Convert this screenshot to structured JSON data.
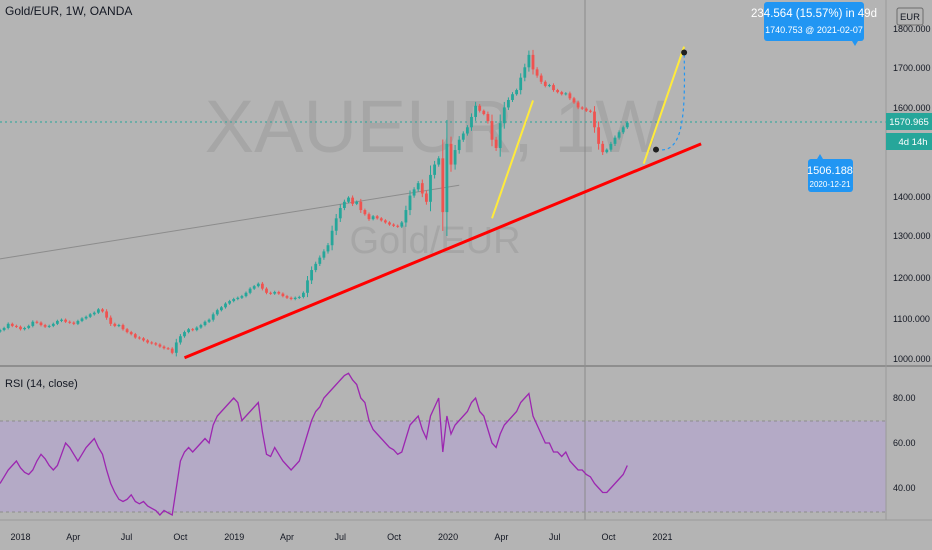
{
  "header": {
    "symbol": "Gold/EUR, 1W, OANDA",
    "currency": "EUR"
  },
  "watermark": {
    "ticker": "XAUEUR, 1W",
    "name": "Gold/EUR"
  },
  "price_axis": {
    "ticks": [
      "1800.000",
      "1700.000",
      "1600.000",
      "1400.000",
      "1300.000",
      "1200.000",
      "1100.000",
      "1000.000"
    ],
    "current_price": "1570.965",
    "countdown": "4d 14h"
  },
  "time_axis": {
    "labels": [
      "2018",
      "Apr",
      "Jul",
      "Oct",
      "2019",
      "Apr",
      "Jul",
      "Oct",
      "2020",
      "Apr",
      "Jul",
      "Oct",
      "2021"
    ]
  },
  "rsi": {
    "title": "RSI (14, close)",
    "ticks": [
      "80.00",
      "60.00",
      "40.00"
    ],
    "current_value": "50.27"
  },
  "measure": {
    "headline": "234.564 (15.57%) in 49d",
    "detail": "1740.753 @ 2021-02-07",
    "origin_price": "1506.188",
    "origin_date": "2020-12-21"
  },
  "colors": {
    "background": "#b4b4b4",
    "candle_up": "#26a69a",
    "candle_down": "#ef5350",
    "trendline": "#ff0000",
    "impulse": "#ffeb3b",
    "rsi_line": "#9c27b0",
    "rsi_band": "#b39ddb",
    "callout": "#2196f3",
    "price_label": "#26a69a"
  },
  "chart_data": {
    "type": "candlestick",
    "title": "Gold/EUR, 1W, OANDA",
    "ylim": [
      1000,
      1830
    ],
    "x_range": [
      "2017-12-04",
      "2021-03-08"
    ],
    "series": [
      {
        "name": "Gold/EUR",
        "interval": "1W",
        "start": "2017-11-27",
        "close": [
          1070,
          1075,
          1085,
          1080,
          1078,
          1072,
          1075,
          1080,
          1090,
          1088,
          1082,
          1078,
          1080,
          1085,
          1092,
          1095,
          1090,
          1088,
          1085,
          1092,
          1098,
          1102,
          1108,
          1112,
          1120,
          1115,
          1100,
          1085,
          1080,
          1082,
          1072,
          1065,
          1060,
          1052,
          1050,
          1045,
          1040,
          1038,
          1035,
          1030,
          1026,
          1025,
          1015,
          1040,
          1055,
          1065,
          1072,
          1070,
          1076,
          1082,
          1090,
          1095,
          1108,
          1118,
          1125,
          1134,
          1140,
          1145,
          1148,
          1152,
          1160,
          1170,
          1176,
          1182,
          1170,
          1160,
          1158,
          1162,
          1158,
          1152,
          1148,
          1145,
          1148,
          1150,
          1160,
          1190,
          1215,
          1230,
          1245,
          1260,
          1275,
          1310,
          1340,
          1365,
          1380,
          1390,
          1375,
          1380,
          1360,
          1350,
          1338,
          1345,
          1340,
          1335,
          1330,
          1325,
          1322,
          1320,
          1330,
          1360,
          1395,
          1410,
          1425,
          1400,
          1380,
          1445,
          1470,
          1485,
          1355,
          1520,
          1470,
          1505,
          1530,
          1545,
          1560,
          1585,
          1612,
          1600,
          1592,
          1575,
          1530,
          1510,
          1570,
          1608,
          1626,
          1640,
          1650,
          1680,
          1705,
          1735,
          1700,
          1685,
          1670,
          1660,
          1662,
          1650,
          1645,
          1640,
          1642,
          1630,
          1620,
          1608,
          1605,
          1600,
          1598,
          1560,
          1520,
          1500,
          1506,
          1520,
          1535,
          1548,
          1560,
          1571
        ]
      }
    ],
    "trendlines": [
      {
        "name": "support",
        "from": [
          "2018-10-08",
          1003
        ],
        "to": [
          "2021-03-08",
          1520
        ]
      },
      {
        "name": "thin",
        "from": [
          "2017-11-27",
          1242
        ],
        "to": [
          "2020-01-20",
          1420
        ]
      },
      {
        "name": "impulse-1",
        "from": [
          "2020-03-16",
          1340
        ],
        "to": [
          "2020-05-25",
          1625
        ]
      },
      {
        "name": "impulse-2",
        "from": [
          "2020-11-30",
          1472
        ],
        "to": [
          "2021-02-07",
          1755
        ]
      }
    ],
    "measure": {
      "from": [
        "2020-12-21",
        1506.188
      ],
      "to": [
        "2021-02-07",
        1740.753
      ],
      "change": 234.564,
      "change_percent": 15.57,
      "days": 49
    },
    "rsi": {
      "period": 14,
      "source": "close",
      "ylim": [
        27,
        95
      ],
      "band": [
        30,
        70
      ],
      "values": [
        42,
        45,
        48,
        50,
        52,
        49,
        47,
        46,
        48,
        52,
        55,
        53,
        50,
        48,
        50,
        55,
        60,
        58,
        55,
        52,
        55,
        58,
        60,
        62,
        58,
        55,
        48,
        42,
        38,
        35,
        34,
        35,
        37,
        34,
        33,
        34,
        32,
        31,
        30,
        28,
        30,
        29,
        28,
        40,
        52,
        56,
        58,
        56,
        58,
        60,
        62,
        60,
        68,
        72,
        74,
        76,
        78,
        80,
        78,
        70,
        72,
        74,
        76,
        78,
        65,
        55,
        54,
        58,
        55,
        52,
        50,
        48,
        50,
        52,
        58,
        64,
        70,
        74,
        76,
        80,
        82,
        84,
        86,
        88,
        90,
        91,
        88,
        86,
        80,
        78,
        70,
        66,
        64,
        62,
        60,
        58,
        57,
        55,
        56,
        62,
        68,
        70,
        72,
        66,
        62,
        72,
        76,
        80,
        56,
        72,
        64,
        68,
        70,
        72,
        74,
        78,
        80,
        74,
        72,
        66,
        60,
        58,
        64,
        68,
        70,
        72,
        74,
        78,
        80,
        82,
        72,
        68,
        64,
        60,
        60,
        56,
        56,
        54,
        56,
        52,
        50,
        48,
        48,
        46,
        45,
        42,
        40,
        38,
        38,
        40,
        42,
        44,
        46,
        50
      ]
    }
  }
}
